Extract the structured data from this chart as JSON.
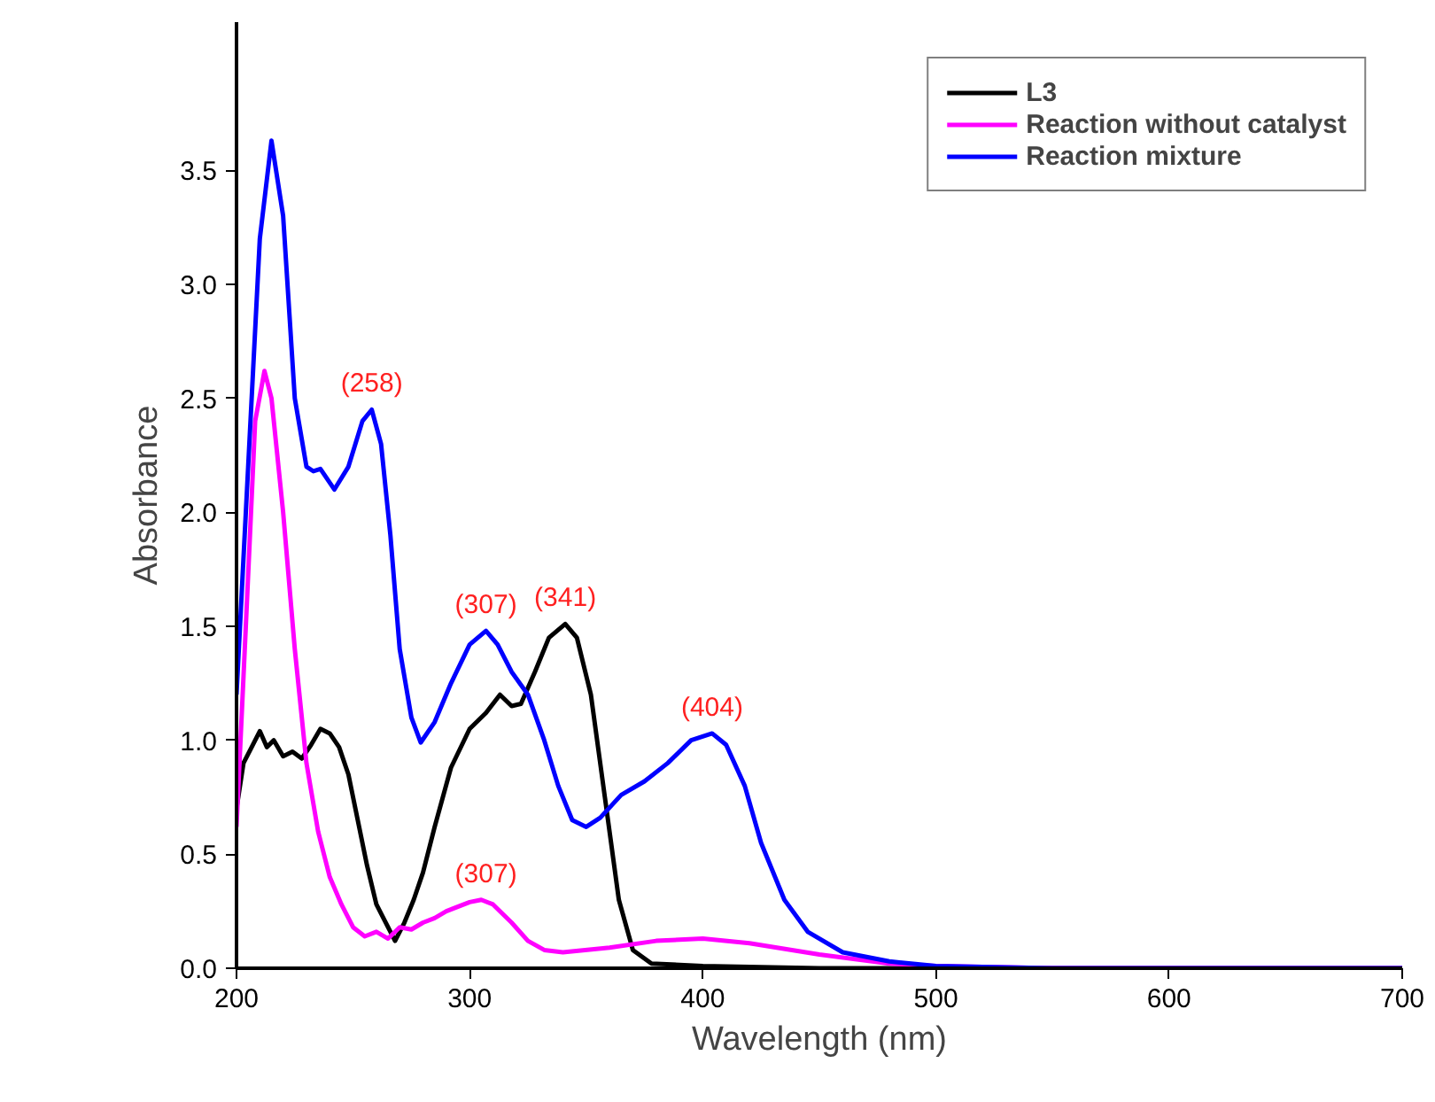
{
  "chart_data": {
    "type": "line",
    "xlabel": "Wavelength (nm)",
    "ylabel": "Absorbance",
    "xlim": [
      200,
      700
    ],
    "ylim": [
      0,
      4.15
    ],
    "xticks": [
      200,
      300,
      400,
      500,
      600,
      700
    ],
    "yticks": [
      {
        "value": 0,
        "label": "0.0"
      },
      {
        "value": 0.5,
        "label": "0.5"
      },
      {
        "value": 1,
        "label": "1.0"
      },
      {
        "value": 1.5,
        "label": "1.5"
      },
      {
        "value": 2,
        "label": "2.0"
      },
      {
        "value": 2.5,
        "label": "2.5"
      },
      {
        "value": 3,
        "label": "3.0"
      },
      {
        "value": 3.5,
        "label": "3.5"
      }
    ],
    "grid": false,
    "legend": "top right",
    "marker": "none",
    "line_style": "solid",
    "series": [
      {
        "name": "L3",
        "color": "#000000",
        "x": [
          200,
          203,
          207,
          210,
          213,
          216,
          220,
          224,
          228,
          232,
          236,
          240,
          244,
          248,
          252,
          256,
          260,
          265,
          268,
          272,
          276,
          280,
          285,
          292,
          300,
          307,
          313,
          318,
          322,
          328,
          334,
          341,
          346,
          352,
          358,
          364,
          370,
          378,
          400,
          450,
          700
        ],
        "values": [
          0.7,
          0.9,
          0.98,
          1.04,
          0.97,
          1.0,
          0.93,
          0.95,
          0.92,
          0.98,
          1.05,
          1.03,
          0.97,
          0.85,
          0.65,
          0.45,
          0.28,
          0.18,
          0.12,
          0.2,
          0.3,
          0.42,
          0.62,
          0.88,
          1.05,
          1.12,
          1.2,
          1.15,
          1.16,
          1.3,
          1.45,
          1.51,
          1.45,
          1.2,
          0.75,
          0.3,
          0.08,
          0.02,
          0.01,
          0.0,
          0.0
        ]
      },
      {
        "name": "Reaction without catalyst",
        "color": "#ff00ff",
        "x": [
          200,
          204,
          208,
          212,
          215,
          220,
          225,
          230,
          235,
          240,
          245,
          250,
          255,
          260,
          265,
          270,
          275,
          280,
          285,
          290,
          300,
          305,
          310,
          318,
          325,
          332,
          340,
          360,
          380,
          400,
          420,
          450,
          480,
          500,
          550,
          700
        ],
        "values": [
          0.62,
          1.5,
          2.4,
          2.62,
          2.5,
          2.0,
          1.4,
          0.9,
          0.6,
          0.4,
          0.28,
          0.18,
          0.14,
          0.16,
          0.13,
          0.18,
          0.17,
          0.2,
          0.22,
          0.25,
          0.29,
          0.3,
          0.28,
          0.2,
          0.12,
          0.08,
          0.07,
          0.09,
          0.12,
          0.13,
          0.11,
          0.06,
          0.02,
          0.01,
          0.0,
          0.0
        ]
      },
      {
        "name": "Reaction mixture",
        "color": "#0000ff",
        "x": [
          200,
          205,
          210,
          215,
          220,
          225,
          230,
          233,
          236,
          242,
          248,
          254,
          258,
          262,
          266,
          270,
          275,
          279,
          285,
          292,
          300,
          307,
          312,
          318,
          325,
          332,
          338,
          344,
          350,
          356,
          365,
          375,
          385,
          395,
          404,
          410,
          418,
          425,
          435,
          445,
          460,
          480,
          500,
          550,
          700
        ],
        "values": [
          1.2,
          2.2,
          3.2,
          3.63,
          3.3,
          2.5,
          2.2,
          2.18,
          2.19,
          2.1,
          2.2,
          2.4,
          2.45,
          2.3,
          1.9,
          1.4,
          1.1,
          0.99,
          1.08,
          1.25,
          1.42,
          1.48,
          1.42,
          1.3,
          1.2,
          1.0,
          0.8,
          0.65,
          0.62,
          0.66,
          0.76,
          0.82,
          0.9,
          1.0,
          1.03,
          0.98,
          0.8,
          0.55,
          0.3,
          0.16,
          0.07,
          0.03,
          0.01,
          0.0,
          0.0
        ]
      }
    ],
    "annotations": [
      {
        "text": "(258)",
        "x": 258,
        "y": 2.45
      },
      {
        "text": "(307)",
        "x": 307,
        "y": 1.48
      },
      {
        "text": "(341)",
        "x": 341,
        "y": 1.51
      },
      {
        "text": "(404)",
        "x": 404,
        "y": 1.03
      },
      {
        "text": "(307)",
        "x": 307,
        "y": 0.3
      }
    ]
  }
}
